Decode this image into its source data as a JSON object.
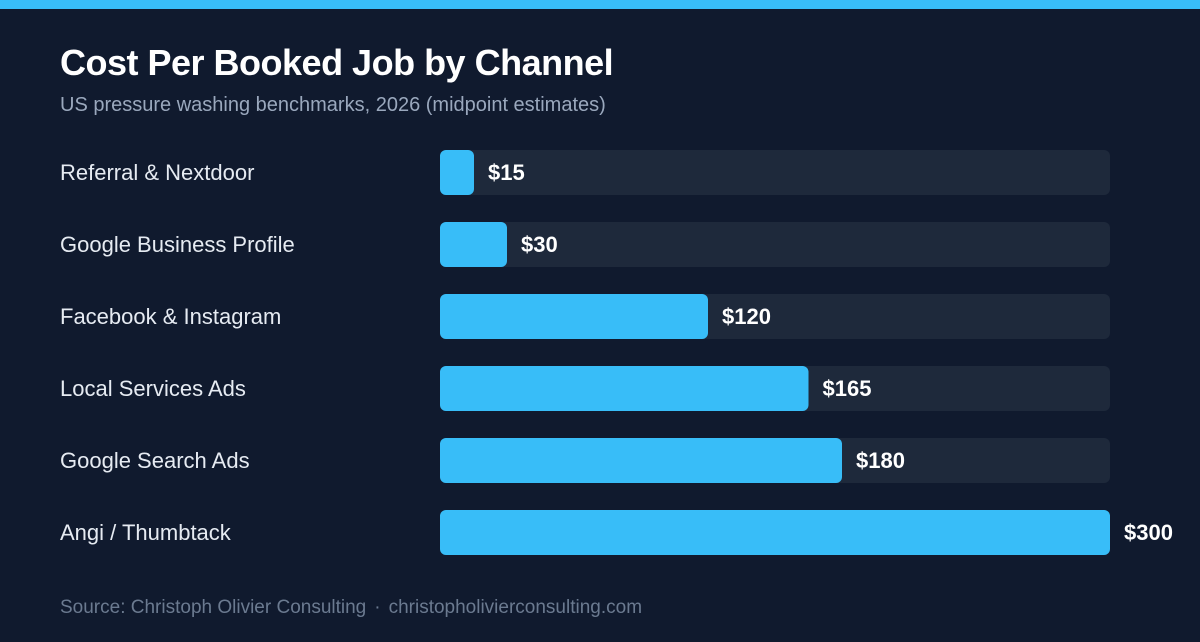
{
  "colors": {
    "accent": "#38bdf8",
    "track": "#1e293b",
    "background": "#101a2e"
  },
  "header": {
    "title": "Cost Per Booked Job by Channel",
    "subtitle": "US pressure washing benchmarks, 2026 (midpoint estimates)"
  },
  "chart_data": {
    "type": "bar",
    "orientation": "horizontal",
    "title": "Cost Per Booked Job by Channel",
    "subtitle": "US pressure washing benchmarks, 2026 (midpoint estimates)",
    "categories": [
      "Referral & Nextdoor",
      "Google Business Profile",
      "Facebook & Instagram",
      "Local Services Ads",
      "Google Search Ads",
      "Angi / Thumbtack"
    ],
    "values": [
      15,
      30,
      120,
      165,
      180,
      300
    ],
    "value_labels": [
      "$15",
      "$30",
      "$120",
      "$165",
      "$180",
      "$300"
    ],
    "xlim": [
      0,
      300
    ],
    "xlabel": "",
    "ylabel": "",
    "grid": false,
    "legend": "none"
  },
  "footer": {
    "source": "Source: Christoph Olivier Consulting",
    "separator": "·",
    "website": "christopholivierconsulting.com"
  }
}
